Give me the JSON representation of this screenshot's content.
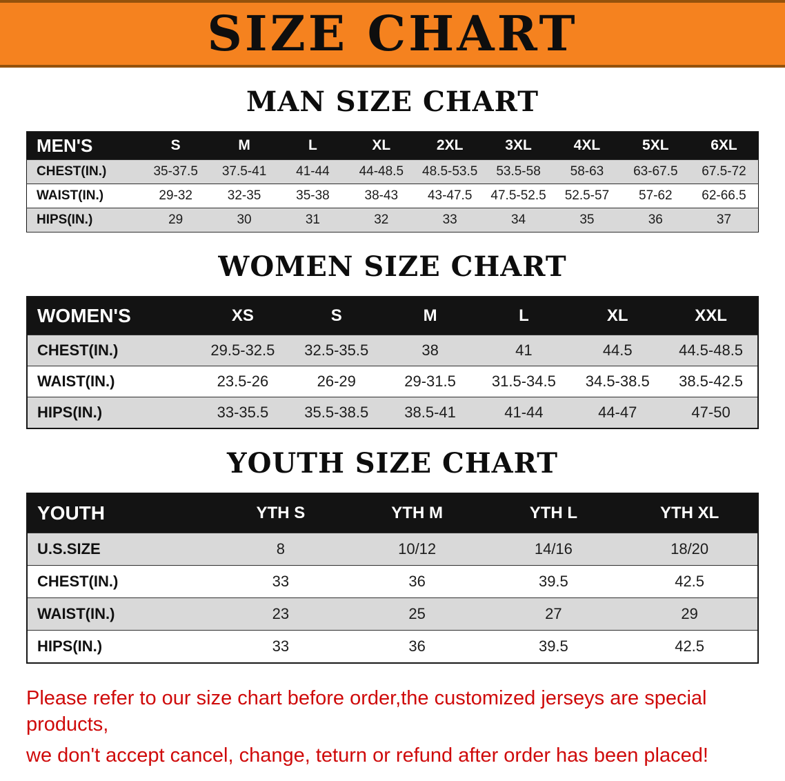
{
  "banner": {
    "title": "SIZE CHART",
    "bg_color": "#F5821F",
    "text_color": "#0e0e0e"
  },
  "sections": {
    "men": {
      "heading": "MAN SIZE CHART",
      "table": {
        "header": [
          "MEN'S",
          "S",
          "M",
          "L",
          "XL",
          "2XL",
          "3XL",
          "4XL",
          "5XL",
          "6XL"
        ],
        "rows": [
          [
            "CHEST(IN.)",
            "35-37.5",
            "37.5-41",
            "41-44",
            "44-48.5",
            "48.5-53.5",
            "53.5-58",
            "58-63",
            "63-67.5",
            "67.5-72"
          ],
          [
            "WAIST(IN.)",
            "29-32",
            "32-35",
            "35-38",
            "38-43",
            "43-47.5",
            "47.5-52.5",
            "52.5-57",
            "57-62",
            "62-66.5"
          ],
          [
            "HIPS(IN.)",
            "29",
            "30",
            "31",
            "32",
            "33",
            "34",
            "35",
            "36",
            "37"
          ]
        ]
      }
    },
    "women": {
      "heading": "WOMEN SIZE CHART",
      "table": {
        "header": [
          "WOMEN'S",
          "XS",
          "S",
          "M",
          "L",
          "XL",
          "XXL"
        ],
        "rows": [
          [
            "CHEST(IN.)",
            "29.5-32.5",
            "32.5-35.5",
            "38",
            "41",
            "44.5",
            "44.5-48.5"
          ],
          [
            "WAIST(IN.)",
            "23.5-26",
            "26-29",
            "29-31.5",
            "31.5-34.5",
            "34.5-38.5",
            "38.5-42.5"
          ],
          [
            "HIPS(IN.)",
            "33-35.5",
            "35.5-38.5",
            "38.5-41",
            "41-44",
            "44-47",
            "47-50"
          ]
        ]
      }
    },
    "youth": {
      "heading": "YOUTH SIZE CHART",
      "table": {
        "header": [
          "YOUTH",
          "YTH S",
          "YTH M",
          "YTH L",
          "YTH XL"
        ],
        "rows": [
          [
            "U.S.SIZE",
            "8",
            "10/12",
            "14/16",
            "18/20"
          ],
          [
            "CHEST(IN.)",
            "33",
            "36",
            "39.5",
            "42.5"
          ],
          [
            "WAIST(IN.)",
            "23",
            "25",
            "27",
            "29"
          ],
          [
            "HIPS(IN.)",
            "33",
            "36",
            "39.5",
            "42.5"
          ]
        ]
      }
    }
  },
  "footer": {
    "text_color": "#cf0a0a",
    "line1": "Please refer to our size chart before order,the customized jerseys are special products,",
    "line2": "we don't accept cancel, change, teturn or refund after order has been placed!"
  }
}
